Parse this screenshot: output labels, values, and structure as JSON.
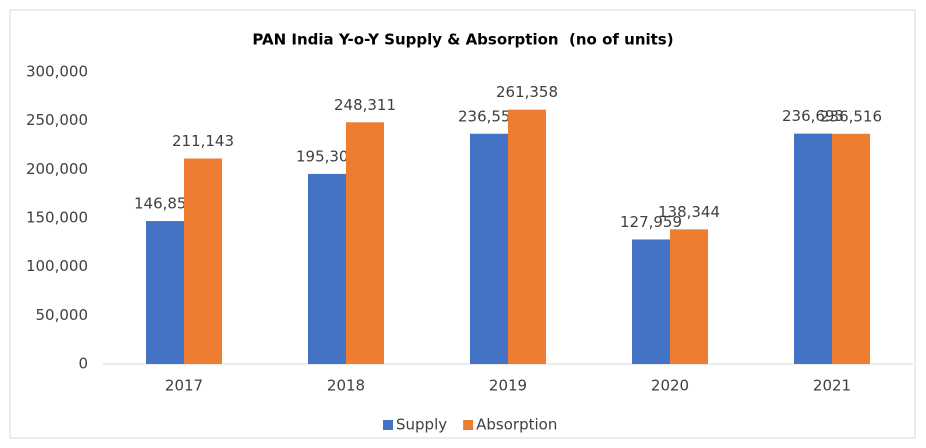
{
  "chart_data": {
    "type": "bar",
    "title": "PAN India Y-o-Y Supply & Absorption  (no of units)",
    "categories": [
      "2017",
      "2018",
      "2019",
      "2020",
      "2021"
    ],
    "series": [
      {
        "name": "Supply",
        "color": "#4472c4",
        "values": [
          146856,
          195302,
          236557,
          127959,
          236693
        ],
        "value_labels": [
          "146,856",
          "195,302",
          "236,557",
          "127,959",
          "236,693"
        ]
      },
      {
        "name": "Absorption",
        "color": "#ed7d31",
        "values": [
          211143,
          248311,
          261358,
          138344,
          236516
        ],
        "value_labels": [
          "211,143",
          "248,311",
          "261,358",
          "138,344",
          "236,516"
        ]
      }
    ],
    "ylim": [
      0,
      300000
    ],
    "yticks": [
      0,
      {
        "value": 50000,
        "label": "50,000"
      },
      {
        "value": 100000,
        "label": "100,000"
      },
      {
        "value": 150000,
        "label": "150,000"
      },
      {
        "value": 200000,
        "label": "200,000"
      },
      {
        "value": 250000,
        "label": "250,000"
      },
      {
        "value": 300000,
        "label": "300,000"
      }
    ],
    "grid": false,
    "legend": "bottom"
  }
}
